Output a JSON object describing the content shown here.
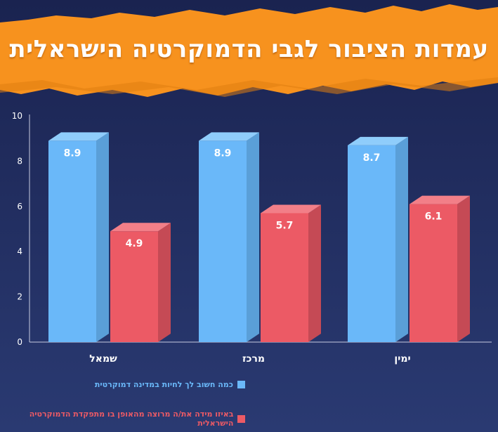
{
  "chart_data": {
    "type": "bar",
    "title": "עמדות הציבור לגבי הדמוקרטיה הישראלית",
    "categories": [
      "שמאל",
      "מרכז",
      "ימין"
    ],
    "series": [
      {
        "name": "כמה חשוב לך לחיות במדינה דמוקרטית",
        "values": [
          8.9,
          8.9,
          8.7
        ],
        "labels": [
          "8.9",
          "8.9",
          "8.7"
        ],
        "color": "#6ab8f9"
      },
      {
        "name": "באיזו מידה את/ה מרוצה מהאופן בו מתפקדת הדמוקרטיה הישראלית",
        "values": [
          4.9,
          5.7,
          6.1
        ],
        "labels": [
          "4.9",
          "5.7",
          "6.1"
        ],
        "color": "#ec5a65"
      }
    ],
    "ylim": [
      0,
      10
    ],
    "yticks": [
      "0",
      "2",
      "4",
      "6",
      "8",
      "10"
    ],
    "grid": false,
    "legend_position": "bottom-center"
  },
  "colors": {
    "background": "#1f2a58",
    "banner": "#f7921e",
    "title_text": "#ffffff",
    "axis_text": "#ffffff"
  }
}
